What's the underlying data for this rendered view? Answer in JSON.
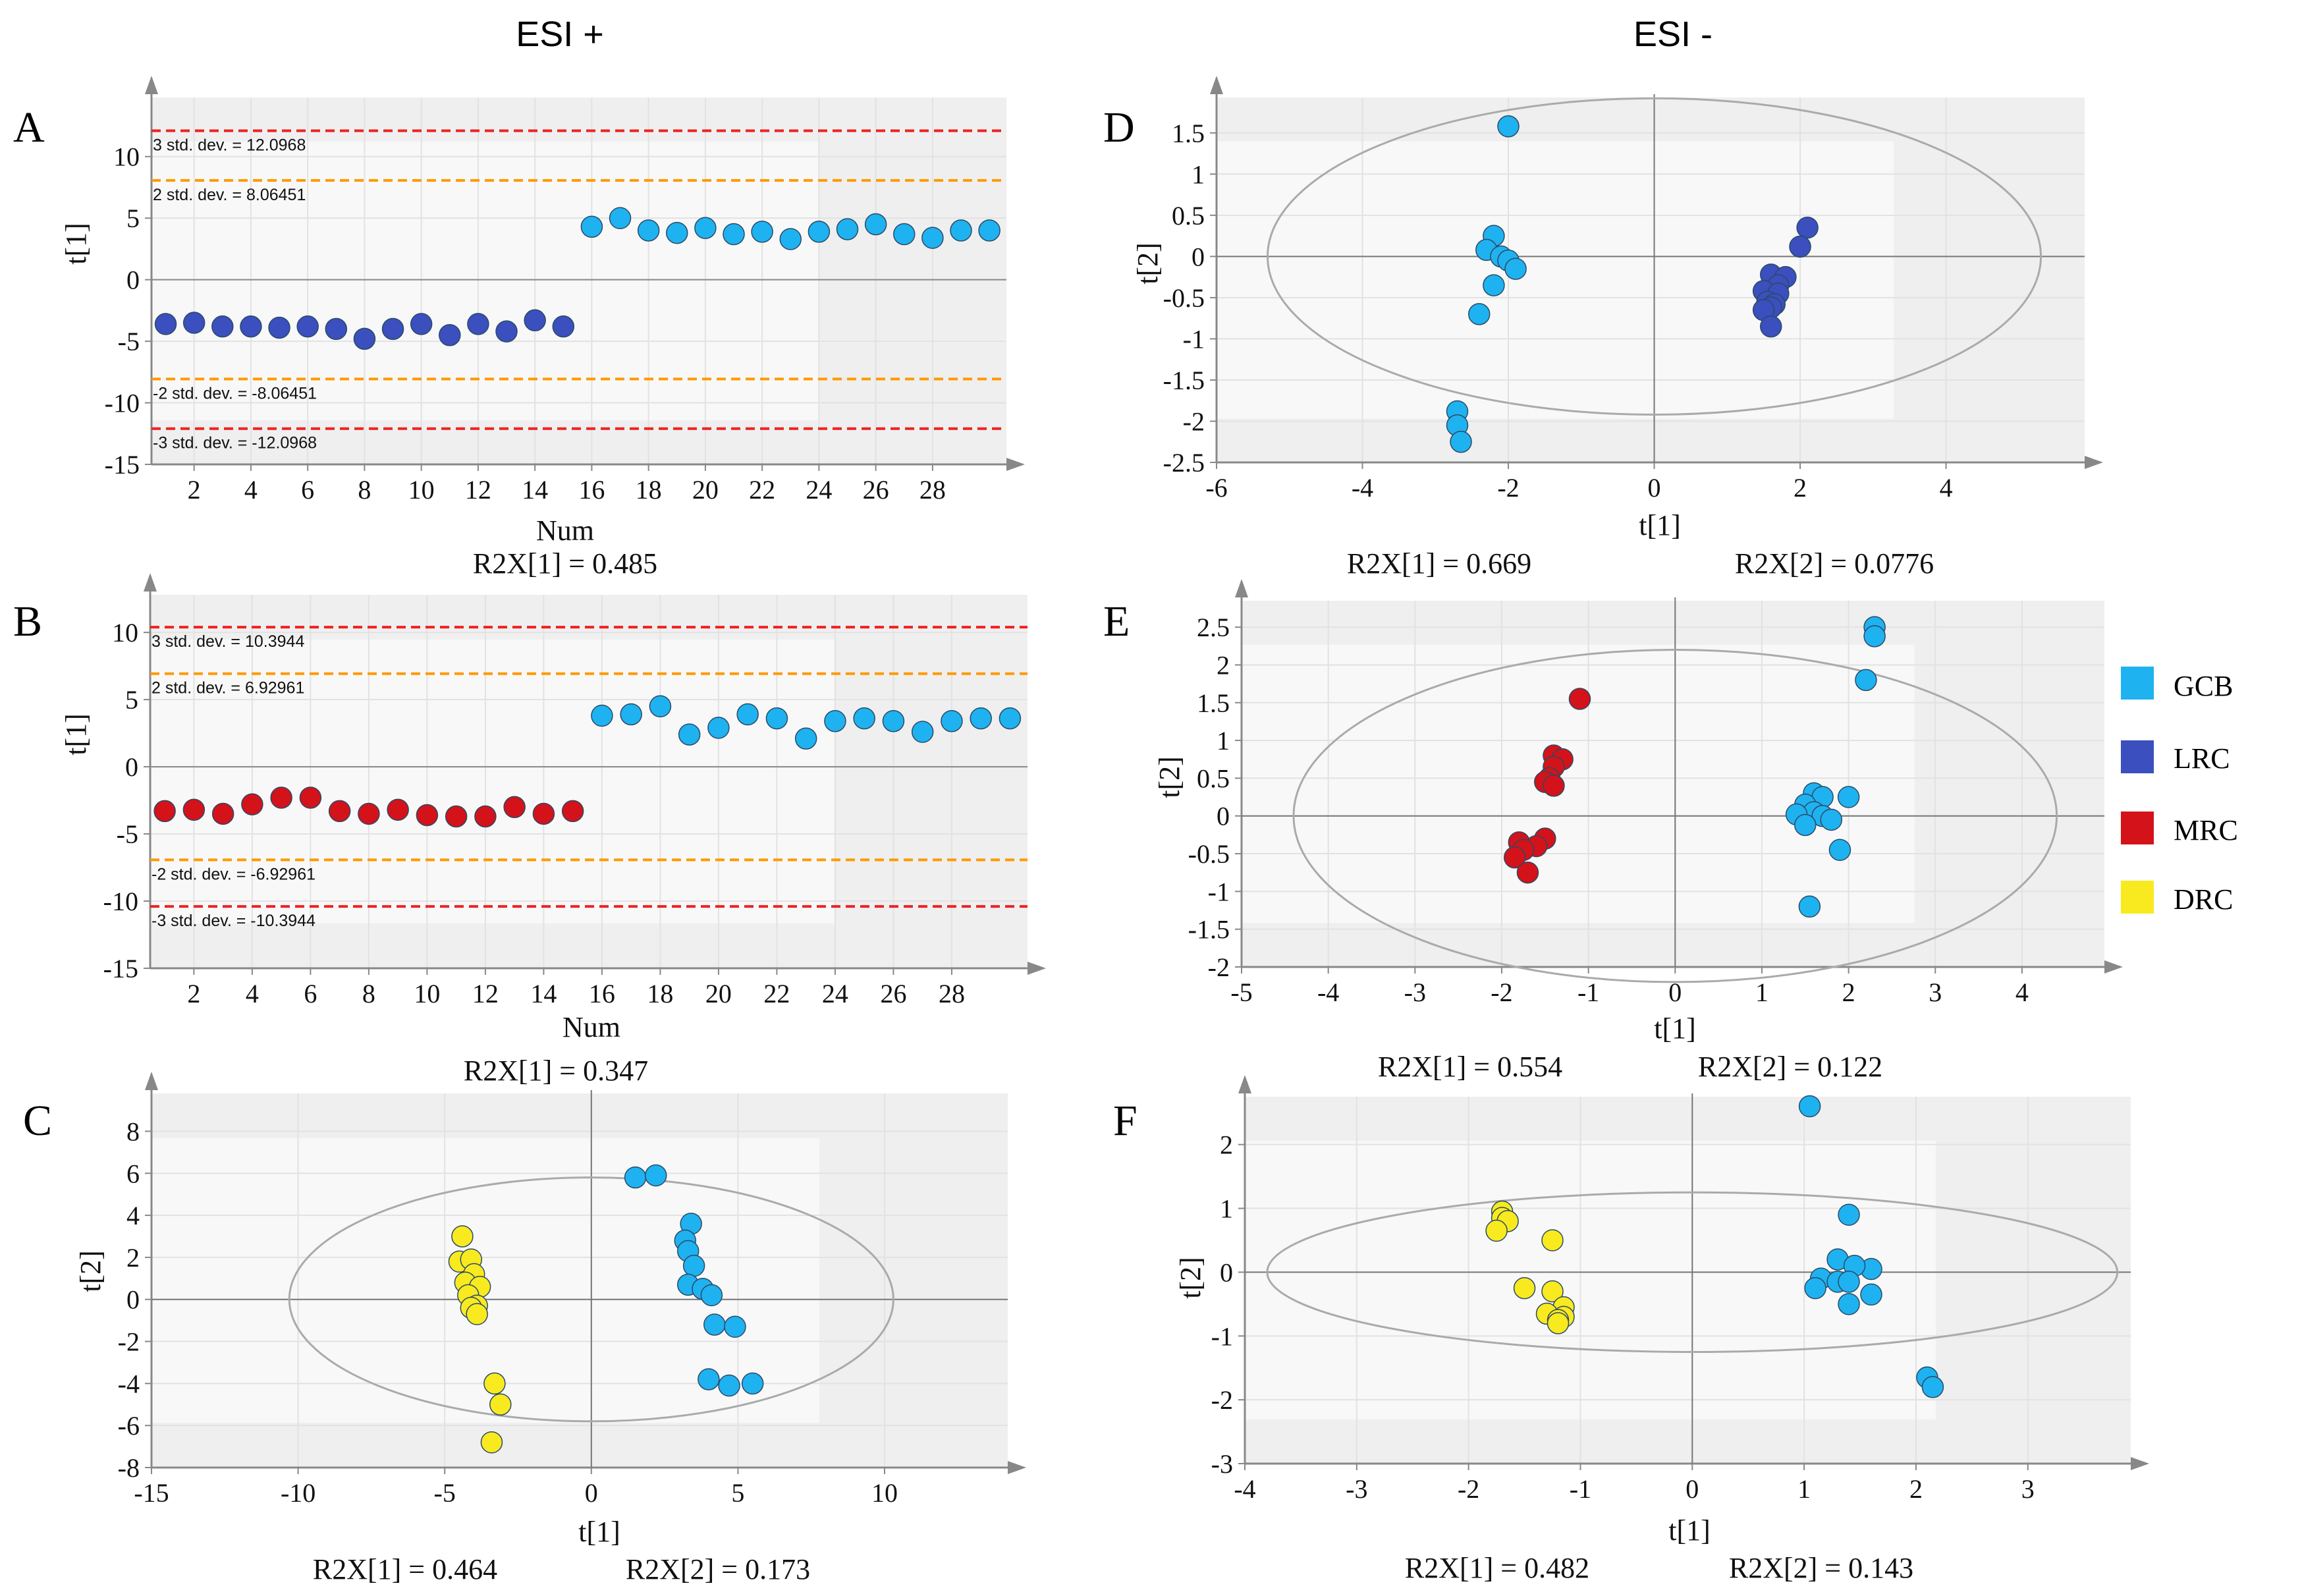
{
  "headers": {
    "left": "ESI +",
    "right": "ESI -"
  },
  "legend": [
    {
      "label": "GCB",
      "color": "#1fb2f0"
    },
    {
      "label": "LRC",
      "color": "#3b4fbf"
    },
    {
      "label": "MRC",
      "color": "#d4121a"
    },
    {
      "label": "DRC",
      "color": "#f9ea1f"
    }
  ],
  "chart_data": [
    {
      "panel": "A",
      "type": "scatter",
      "subtype": "score-line",
      "xlabel": "Num",
      "ylabel": "t[1]",
      "xlim": [
        0.5,
        30.6
      ],
      "ylim": [
        -15,
        14.8
      ],
      "xticks": [
        2,
        4,
        6,
        8,
        10,
        12,
        14,
        16,
        18,
        20,
        22,
        24,
        26,
        28
      ],
      "yticks": [
        -15,
        -10,
        -5,
        0,
        5,
        10
      ],
      "reference_lines": [
        {
          "label": "3 std. dev. = 12.0968",
          "value": 12.0968,
          "color": "#ee2222"
        },
        {
          "label": "2 std. dev. = 8.06451",
          "value": 8.06451,
          "color": "#ff9900"
        },
        {
          "label": "-2 std. dev. = -8.06451",
          "value": -8.06451,
          "color": "#ff9900"
        },
        {
          "label": "-3 std. dev. = -12.0968",
          "value": -12.0968,
          "color": "#ee2222"
        }
      ],
      "series": [
        {
          "name": "LRC",
          "color": "#3b4fbf",
          "x": [
            1,
            2,
            3,
            4,
            5,
            6,
            7,
            8,
            9,
            10,
            11,
            12,
            13,
            14,
            15
          ],
          "y": [
            -3.6,
            -3.5,
            -3.8,
            -3.8,
            -3.9,
            -3.8,
            -4.0,
            -4.8,
            -4.0,
            -3.6,
            -4.5,
            -3.6,
            -4.2,
            -3.3,
            -3.8
          ]
        },
        {
          "name": "GCB",
          "color": "#1fb2f0",
          "x": [
            16,
            17,
            18,
            19,
            20,
            21,
            22,
            23,
            24,
            25,
            26,
            27,
            28,
            29,
            30
          ],
          "y": [
            4.3,
            5.0,
            4.0,
            3.8,
            4.2,
            3.7,
            3.9,
            3.3,
            3.9,
            4.1,
            4.5,
            3.7,
            3.4,
            4.0,
            4.0
          ]
        }
      ],
      "caption": "R2X[1] = 0.485"
    },
    {
      "panel": "B",
      "type": "scatter",
      "subtype": "score-line",
      "xlabel": "Num",
      "ylabel": "t[1]",
      "xlim": [
        0.5,
        30.6
      ],
      "ylim": [
        -15,
        12.8
      ],
      "xticks": [
        2,
        4,
        6,
        8,
        10,
        12,
        14,
        16,
        18,
        20,
        22,
        24,
        26,
        28
      ],
      "yticks": [
        -15,
        -10,
        -5,
        0,
        5,
        10
      ],
      "reference_lines": [
        {
          "label": "3 std. dev. = 10.3944",
          "value": 10.3944,
          "color": "#ee2222"
        },
        {
          "label": "2 std. dev. = 6.92961",
          "value": 6.92961,
          "color": "#ff9900"
        },
        {
          "label": "-2 std. dev. = -6.92961",
          "value": -6.92961,
          "color": "#ff9900"
        },
        {
          "label": "-3 std. dev. = -10.3944",
          "value": -10.3944,
          "color": "#ee2222"
        }
      ],
      "series": [
        {
          "name": "MRC",
          "color": "#d4121a",
          "x": [
            1,
            2,
            3,
            4,
            5,
            6,
            7,
            8,
            9,
            10,
            11,
            12,
            13,
            14,
            15
          ],
          "y": [
            -3.3,
            -3.2,
            -3.5,
            -2.8,
            -2.3,
            -2.3,
            -3.3,
            -3.5,
            -3.2,
            -3.6,
            -3.7,
            -3.7,
            -3.0,
            -3.5,
            -3.3
          ]
        },
        {
          "name": "GCB",
          "color": "#1fb2f0",
          "x": [
            16,
            17,
            18,
            19,
            20,
            21,
            22,
            23,
            24,
            25,
            26,
            27,
            28,
            29,
            30
          ],
          "y": [
            3.8,
            3.9,
            4.5,
            2.4,
            2.9,
            3.9,
            3.6,
            2.1,
            3.4,
            3.6,
            3.4,
            2.6,
            3.4,
            3.6,
            3.6
          ]
        }
      ],
      "caption": "R2X[1] = 0.347"
    },
    {
      "panel": "C",
      "type": "scatter",
      "subtype": "score-plot",
      "xlabel": "t[1]",
      "ylabel": "t[2]",
      "xlim": [
        -15,
        14.2
      ],
      "ylim": [
        -8,
        9.8
      ],
      "xticks": [
        -15,
        -10,
        -5,
        0,
        5,
        10
      ],
      "yticks": [
        -8,
        -6,
        -4,
        -2,
        0,
        2,
        4,
        6,
        8
      ],
      "ellipse": {
        "rx": 10.3,
        "ry": 5.8
      },
      "series": [
        {
          "name": "DRC",
          "color": "#f9ea1f",
          "x": [
            -4.4,
            -4.5,
            -4.1,
            -4.0,
            -4.3,
            -3.8,
            -4.2,
            -3.9,
            -4.1,
            -3.9,
            -3.3,
            -3.1,
            -3.4
          ],
          "y": [
            3.0,
            1.8,
            1.9,
            1.2,
            0.8,
            0.6,
            0.2,
            -0.3,
            -0.4,
            -0.7,
            -4.0,
            -5.0,
            -6.8
          ]
        },
        {
          "name": "GCB",
          "color": "#1fb2f0",
          "x": [
            1.5,
            2.2,
            3.4,
            3.2,
            3.3,
            3.5,
            3.3,
            3.8,
            4.1,
            4.2,
            4.9,
            4.0,
            4.7,
            5.5
          ],
          "y": [
            5.8,
            5.9,
            3.6,
            2.8,
            2.3,
            1.6,
            0.7,
            0.5,
            0.2,
            -1.2,
            -1.3,
            -3.8,
            -4.1,
            -4.0
          ]
        }
      ],
      "captions": [
        "R2X[1] = 0.464",
        "R2X[2] = 0.173"
      ]
    },
    {
      "panel": "D",
      "type": "scatter",
      "subtype": "score-plot",
      "xlabel": "t[1]",
      "ylabel": "t[2]",
      "xlim": [
        -6,
        5.9
      ],
      "ylim": [
        -2.5,
        1.93
      ],
      "xticks": [
        -6,
        -4,
        -2,
        0,
        2,
        4
      ],
      "yticks": [
        -2.5,
        -2,
        -1.5,
        -1,
        -0.5,
        0,
        0.5,
        1,
        1.5
      ],
      "ytick_labels": [
        "-2.5",
        "-2",
        "-1.5",
        "-1",
        "-0.5",
        "0",
        "0.5",
        "1",
        "1.5"
      ],
      "ellipse": {
        "rx": 5.3,
        "ry": 1.92
      },
      "series": [
        {
          "name": "GCB",
          "color": "#1fb2f0",
          "x": [
            -2.0,
            -2.2,
            -2.3,
            -2.1,
            -2.0,
            -1.9,
            -2.2,
            -2.4,
            -2.7,
            -2.7,
            -2.65
          ],
          "y": [
            1.58,
            0.25,
            0.08,
            0.0,
            -0.05,
            -0.15,
            -0.35,
            -0.7,
            -1.88,
            -2.05,
            -2.25
          ]
        },
        {
          "name": "LRC",
          "color": "#3b4fbf",
          "x": [
            2.1,
            2.0,
            1.6,
            1.8,
            1.7,
            1.5,
            1.7,
            1.55,
            1.65,
            1.6,
            1.5,
            1.6
          ],
          "y": [
            0.35,
            0.12,
            -0.22,
            -0.25,
            -0.35,
            -0.42,
            -0.45,
            -0.55,
            -0.58,
            -0.62,
            -0.65,
            -0.85
          ]
        }
      ],
      "captions": [
        "R2X[1] = 0.669",
        "R2X[2] = 0.0776"
      ]
    },
    {
      "panel": "E",
      "type": "scatter",
      "subtype": "score-plot",
      "xlabel": "t[1]",
      "ylabel": "t[2]",
      "xlim": [
        -5,
        4.95
      ],
      "ylim": [
        -2,
        2.85
      ],
      "xticks": [
        -5,
        -4,
        -3,
        -2,
        -1,
        0,
        1,
        2,
        3,
        4
      ],
      "yticks": [
        -2,
        -1.5,
        -1,
        -0.5,
        0,
        0.5,
        1,
        1.5,
        2,
        2.5
      ],
      "ytick_labels": [
        "-2",
        "-1.5",
        "-1",
        "-0.5",
        "0",
        "0.5",
        "1",
        "1.5",
        "2",
        "2.5"
      ],
      "ellipse": {
        "rx": 4.4,
        "ry": 2.2
      },
      "series": [
        {
          "name": "MRC",
          "color": "#d4121a",
          "x": [
            -1.1,
            -1.4,
            -1.3,
            -1.4,
            -1.45,
            -1.5,
            -1.4,
            -1.5,
            -1.8,
            -1.6,
            -1.75,
            -1.85,
            -1.7
          ],
          "y": [
            1.55,
            0.8,
            0.75,
            0.65,
            0.5,
            0.45,
            0.4,
            -0.3,
            -0.35,
            -0.4,
            -0.45,
            -0.55,
            -0.75
          ]
        },
        {
          "name": "GCB",
          "color": "#1fb2f0",
          "x": [
            2.3,
            2.3,
            2.2,
            1.6,
            1.7,
            2.0,
            1.5,
            1.6,
            1.4,
            1.7,
            1.5,
            1.8,
            1.9,
            1.55
          ],
          "y": [
            2.5,
            2.38,
            1.8,
            0.3,
            0.25,
            0.25,
            0.15,
            0.05,
            0.02,
            0.0,
            -0.12,
            -0.05,
            -0.45,
            -1.2
          ]
        }
      ],
      "captions": [
        "R2X[1] = 0.554",
        "R2X[2] = 0.122"
      ]
    },
    {
      "panel": "F",
      "type": "scatter",
      "subtype": "score-plot",
      "xlabel": "t[1]",
      "ylabel": "t[2]",
      "xlim": [
        -4,
        3.92
      ],
      "ylim": [
        -3,
        2.75
      ],
      "xticks": [
        -4,
        -3,
        -2,
        -1,
        0,
        1,
        2,
        3
      ],
      "yticks": [
        -3,
        -2,
        -1,
        0,
        1,
        2
      ],
      "ellipse": {
        "rx": 3.8,
        "ry": 1.25
      },
      "series": [
        {
          "name": "DRC",
          "color": "#f9ea1f",
          "x": [
            -1.7,
            -1.7,
            -1.65,
            -1.75,
            -1.25,
            -1.5,
            -1.25,
            -1.15,
            -1.3,
            -1.15,
            -1.2,
            -1.2
          ],
          "y": [
            0.95,
            0.85,
            0.8,
            0.65,
            0.5,
            -0.25,
            -0.3,
            -0.55,
            -0.65,
            -0.7,
            -0.75,
            -0.8
          ]
        },
        {
          "name": "GCB",
          "color": "#1fb2f0",
          "x": [
            1.05,
            1.4,
            1.3,
            1.6,
            1.45,
            1.15,
            1.3,
            1.4,
            1.1,
            1.6,
            1.4,
            2.1,
            2.15
          ],
          "y": [
            2.6,
            0.9,
            0.2,
            0.05,
            0.1,
            -0.1,
            -0.15,
            -0.15,
            -0.25,
            -0.35,
            -0.5,
            -1.65,
            -1.8
          ]
        }
      ],
      "captions": [
        "R2X[1] = 0.482",
        "R2X[2] = 0.143"
      ]
    }
  ]
}
